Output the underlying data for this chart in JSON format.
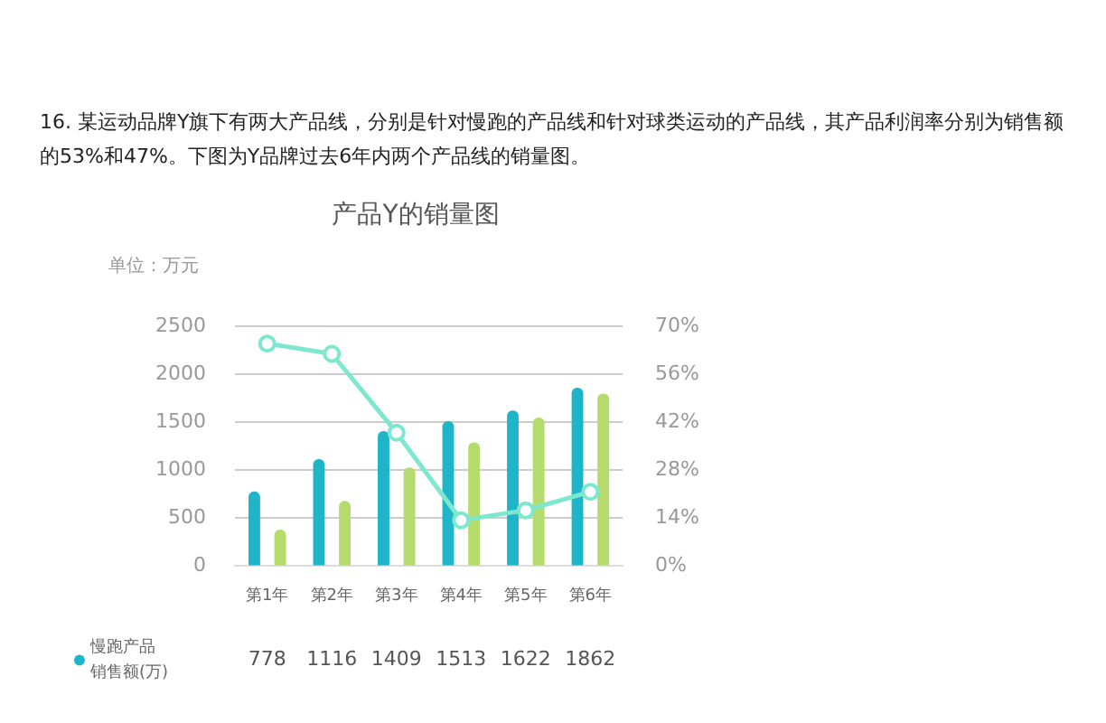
{
  "chart_data": {
    "type": "bar",
    "title": "产品Y的销量图",
    "ylabel": "单位：万元",
    "annotations": [
      "16. 某运动品牌Y旗下有两大产品线，分别是针对慢跑的产品线和针对球类运动的产品线，其产品利润率分别为销售额的53%和47%。下图为Y品牌过去6年内两个产品线的销量图。"
    ],
    "categories": [
      "第1年",
      "第2年",
      "第3年",
      "第4年",
      "第5年",
      "第6年"
    ],
    "series": [
      {
        "name": "慢跑产品销售额(万)",
        "color": "#1fb5c9",
        "values": [
          778,
          1116,
          1409,
          1513,
          1622,
          1862
        ],
        "value_labels": [
          "778",
          "1116",
          "1409",
          "1513",
          "1622",
          "1862"
        ]
      },
      {
        "color": "#b4db6b",
        "values": [
          380,
          680,
          1030,
          1290,
          1550,
          1800
        ]
      },
      {
        "type": "line",
        "axis": "y2",
        "color": "#7ee8cf",
        "values": [
          65,
          62,
          39,
          13.4,
          16.3,
          21.7
        ]
      }
    ],
    "ylim": [
      0,
      2500
    ],
    "yticks": [
      0,
      500,
      1000,
      1500,
      2000,
      2500
    ],
    "y2lim": [
      0,
      70
    ],
    "y2ticks": [
      {
        "value": 0,
        "label": "0%"
      },
      {
        "value": 14,
        "label": "14%"
      },
      {
        "value": 28,
        "label": "28%"
      },
      {
        "value": 42,
        "label": "42%"
      },
      {
        "value": 56,
        "label": "56%"
      },
      {
        "value": 70,
        "label": "70%"
      }
    ],
    "grid": "y",
    "legend": "bottom left",
    "marker": "circle",
    "line_style": "solid"
  }
}
